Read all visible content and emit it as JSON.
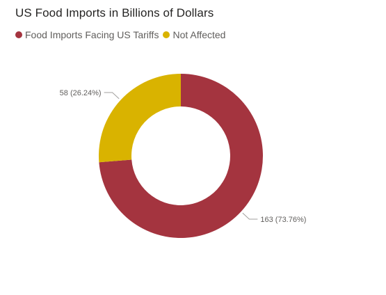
{
  "chart_data": {
    "type": "pie",
    "variant": "donut",
    "title": "US Food Imports in Billions of Dollars",
    "legend_position": "top-left",
    "categories": [
      "Food Imports Facing US Tariffs",
      "Not Affected"
    ],
    "values": [
      163,
      58
    ],
    "colors": [
      "#a4343f",
      "#d9b300"
    ],
    "data_labels": [
      "163 (73.76%)",
      "58 (26.24%)"
    ]
  }
}
